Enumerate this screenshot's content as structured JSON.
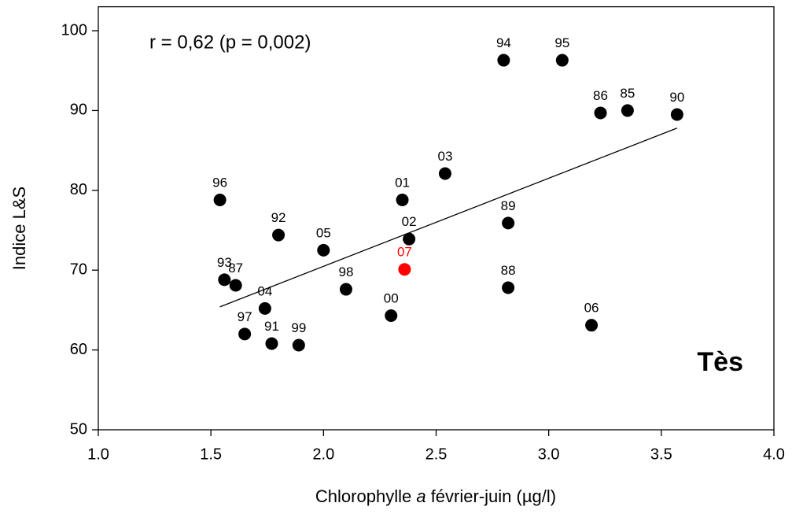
{
  "chart_data": {
    "type": "scatter",
    "x_label_parts": [
      "Chlorophylle ",
      "a",
      " février-juin (µg/l)"
    ],
    "y_label": "Indice L&S",
    "annotations": [
      "r = 0,62   (p = 0,002)",
      "Tès"
    ],
    "xlim": [
      1,
      4
    ],
    "ylim": [
      50,
      103
    ],
    "xticks": [
      {
        "value": 1,
        "label": "1.0"
      },
      1.5,
      {
        "value": 2,
        "label": "2.0"
      },
      2.5,
      {
        "value": 3,
        "label": "3.0"
      },
      3.5,
      {
        "value": 4,
        "label": "4.0"
      }
    ],
    "yticks": [
      50,
      60,
      70,
      80,
      90,
      100
    ],
    "x": [
      2.8,
      3.06,
      3.23,
      3.35,
      3.57,
      2.54,
      2.35,
      1.54,
      1.8,
      2.0,
      1.56,
      1.61,
      1.74,
      2.1,
      1.65,
      1.77,
      1.89,
      2.3,
      2.36,
      2.38,
      2.82,
      2.82,
      3.19
    ],
    "y": [
      96.3,
      96.3,
      89.7,
      90.0,
      89.5,
      82.1,
      78.8,
      78.8,
      74.4,
      72.5,
      68.8,
      68.1,
      65.2,
      67.6,
      62.0,
      60.8,
      60.6,
      64.3,
      70.1,
      73.9,
      75.9,
      67.8,
      63.1
    ],
    "labels": [
      "94",
      "95",
      "86",
      "85",
      "90",
      "03",
      "01",
      "96",
      "92",
      "05",
      "93",
      "87",
      "04",
      "98",
      "97",
      "91",
      "99",
      "00",
      "07",
      "02",
      "89",
      "88",
      "06"
    ],
    "colors": [
      "#000000",
      "#000000",
      "#000000",
      "#000000",
      "#000000",
      "#000000",
      "#000000",
      "#000000",
      "#000000",
      "#000000",
      "#000000",
      "#000000",
      "#000000",
      "#000000",
      "#000000",
      "#000000",
      "#000000",
      "#000000",
      "#ff0000",
      "#000000",
      "#000000",
      "#000000",
      "#000000"
    ],
    "trend": {
      "x": [
        1.54,
        3.57
      ],
      "y": [
        65.4,
        87.8
      ]
    }
  }
}
